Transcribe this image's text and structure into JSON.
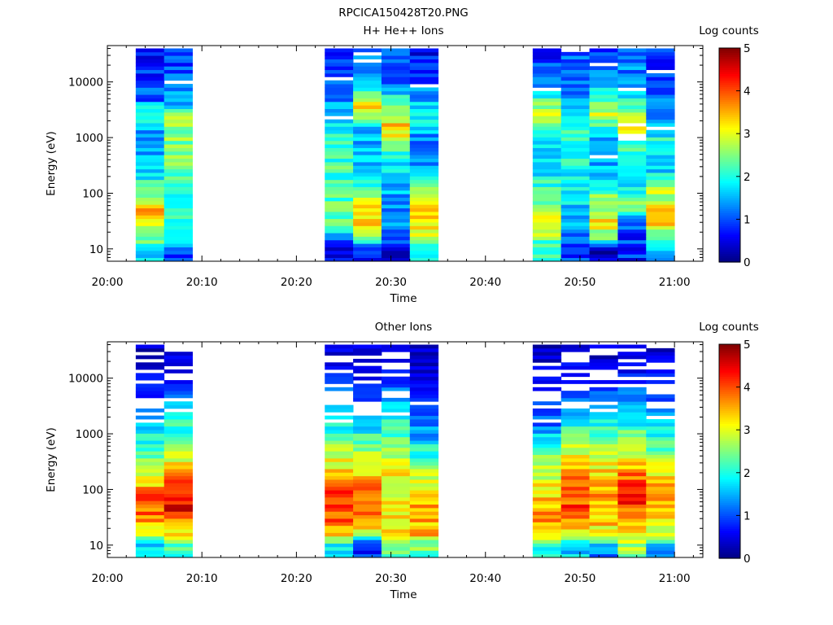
{
  "page": {
    "file_title": "RPCICA150428T20.PNG"
  },
  "chart_data": [
    {
      "type": "heatmap",
      "title": "H+ He++ Ions",
      "xlabel": "Time",
      "ylabel": "Energy (eV)",
      "yscale": "log",
      "ylim": [
        6,
        45000
      ],
      "xlim": [
        "20:00",
        "21:03"
      ],
      "x_tick_labels": [
        "20:00",
        "20:10",
        "20:20",
        "20:30",
        "20:40",
        "20:50",
        "21:00"
      ],
      "y_tick_labels": [
        "10",
        "100",
        "1000",
        "10000"
      ],
      "colorbar": {
        "label": "Log counts",
        "range": [
          0,
          5
        ],
        "tick_labels": [
          "0",
          "1",
          "2",
          "3",
          "4",
          "5"
        ]
      },
      "time_columns": [
        {
          "start": "20:03",
          "end": "20:06",
          "profile": [
            [
              10,
              1.6
            ],
            [
              15,
              2.4
            ],
            [
              30,
              3.2
            ],
            [
              50,
              3.8
            ],
            [
              100,
              2.4
            ],
            [
              300,
              1.6
            ],
            [
              1000,
              1.2
            ],
            [
              2500,
              2.4
            ],
            [
              5000,
              1.0
            ],
            [
              30000,
              0.7
            ]
          ]
        },
        {
          "start": "20:06",
          "end": "20:09",
          "profile": [
            [
              10,
              0.9
            ],
            [
              15,
              1.9
            ],
            [
              50,
              1.9
            ],
            [
              200,
              2.3
            ],
            [
              1000,
              2.5
            ],
            [
              2500,
              2.7
            ],
            [
              4000,
              1.5
            ],
            [
              10000,
              1.0
            ],
            [
              30000,
              0.9
            ]
          ]
        },
        {
          "start": "20:23",
          "end": "20:26",
          "profile": [
            [
              10,
              0.4
            ],
            [
              30,
              2.3
            ],
            [
              100,
              2.3
            ],
            [
              800,
              2.0
            ],
            [
              3000,
              1.4
            ],
            [
              30000,
              0.9
            ]
          ]
        },
        {
          "start": "20:26",
          "end": "20:29",
          "profile": [
            [
              10,
              0.7
            ],
            [
              15,
              2.2
            ],
            [
              30,
              3.3
            ],
            [
              60,
              3.0
            ],
            [
              150,
              1.9
            ],
            [
              500,
              1.5
            ],
            [
              1500,
              1.4
            ],
            [
              3500,
              3.3
            ],
            [
              10000,
              1.4
            ],
            [
              30000,
              1.1
            ]
          ]
        },
        {
          "start": "20:29",
          "end": "20:32",
          "profile": [
            [
              10,
              0.6
            ],
            [
              30,
              1.3
            ],
            [
              100,
              1.5
            ],
            [
              400,
              1.8
            ],
            [
              800,
              2.7
            ],
            [
              1500,
              3.4
            ],
            [
              3000,
              2.5
            ],
            [
              10000,
              1.2
            ],
            [
              30000,
              1.0
            ]
          ]
        },
        {
          "start": "20:32",
          "end": "20:35",
          "profile": [
            [
              10,
              2.1
            ],
            [
              30,
              3.4
            ],
            [
              100,
              2.8
            ],
            [
              300,
              1.3
            ],
            [
              1000,
              1.2
            ],
            [
              2500,
              2.0
            ],
            [
              10000,
              0.9
            ],
            [
              30000,
              0.6
            ]
          ]
        },
        {
          "start": "20:45",
          "end": "20:48",
          "profile": [
            [
              10,
              2.0
            ],
            [
              30,
              3.3
            ],
            [
              100,
              2.3
            ],
            [
              300,
              1.5
            ],
            [
              1000,
              1.8
            ],
            [
              3000,
              2.9
            ],
            [
              10000,
              1.2
            ],
            [
              30000,
              0.8
            ]
          ]
        },
        {
          "start": "20:48",
          "end": "20:51",
          "profile": [
            [
              10,
              0.9
            ],
            [
              30,
              1.6
            ],
            [
              100,
              1.8
            ],
            [
              1000,
              2.1
            ],
            [
              3000,
              1.4
            ],
            [
              10000,
              1.2
            ],
            [
              30000,
              1.1
            ]
          ]
        },
        {
          "start": "20:51",
          "end": "20:54",
          "profile": [
            [
              10,
              0.4
            ],
            [
              15,
              2.2
            ],
            [
              30,
              3.2
            ],
            [
              100,
              2.3
            ],
            [
              300,
              1.5
            ],
            [
              1000,
              1.6
            ],
            [
              3000,
              2.9
            ],
            [
              10000,
              1.3
            ],
            [
              30000,
              1.0
            ]
          ]
        },
        {
          "start": "20:54",
          "end": "20:57",
          "profile": [
            [
              10,
              0.8
            ],
            [
              30,
              1.1
            ],
            [
              60,
              2.9
            ],
            [
              150,
              1.6
            ],
            [
              600,
              2.0
            ],
            [
              2000,
              3.2
            ],
            [
              4000,
              2.1
            ],
            [
              10000,
              1.4
            ],
            [
              30000,
              1.1
            ]
          ]
        },
        {
          "start": "20:57",
          "end": "21:00",
          "profile": [
            [
              10,
              1.6
            ],
            [
              30,
              3.3
            ],
            [
              100,
              2.8
            ],
            [
              300,
              1.5
            ],
            [
              1000,
              1.9
            ],
            [
              3000,
              1.2
            ],
            [
              10000,
              0.9
            ],
            [
              30000,
              0.8
            ]
          ]
        }
      ]
    },
    {
      "type": "heatmap",
      "title": "Other Ions",
      "xlabel": "Time",
      "ylabel": "Energy (eV)",
      "yscale": "log",
      "ylim": [
        6,
        45000
      ],
      "xlim": [
        "20:00",
        "21:03"
      ],
      "x_tick_labels": [
        "20:00",
        "20:10",
        "20:20",
        "20:30",
        "20:40",
        "20:50",
        "21:00"
      ],
      "y_tick_labels": [
        "10",
        "100",
        "1000",
        "10000"
      ],
      "colorbar": {
        "label": "Log counts",
        "range": [
          0,
          5
        ],
        "tick_labels": [
          "0",
          "1",
          "2",
          "3",
          "4",
          "5"
        ]
      },
      "time_columns": [
        {
          "start": "20:03",
          "end": "20:06",
          "profile": [
            [
              10,
              1.8
            ],
            [
              15,
              3.0
            ],
            [
              30,
              3.7
            ],
            [
              60,
              4.1
            ],
            [
              150,
              3.2
            ],
            [
              400,
              2.3
            ],
            [
              1000,
              1.9
            ],
            [
              2500,
              1.0
            ],
            [
              10000,
              0.4
            ],
            [
              30000,
              0.2
            ]
          ]
        },
        {
          "start": "20:06",
          "end": "20:09",
          "profile": [
            [
              10,
              2.2
            ],
            [
              15,
              3.2
            ],
            [
              50,
              4.5
            ],
            [
              100,
              4.3
            ],
            [
              300,
              3.2
            ],
            [
              1000,
              2.3
            ],
            [
              3000,
              1.4
            ],
            [
              10000,
              0.6
            ],
            [
              30000,
              0.3
            ]
          ]
        },
        {
          "start": "20:23",
          "end": "20:26",
          "profile": [
            [
              10,
              2.0
            ],
            [
              15,
              3.2
            ],
            [
              30,
              3.9
            ],
            [
              60,
              4.3
            ],
            [
              150,
              3.6
            ],
            [
              500,
              2.6
            ],
            [
              1500,
              1.9
            ],
            [
              5000,
              1.1
            ],
            [
              30000,
              0.3
            ]
          ]
        },
        {
          "start": "20:26",
          "end": "20:29",
          "profile": [
            [
              10,
              0.8
            ],
            [
              15,
              2.7
            ],
            [
              30,
              3.6
            ],
            [
              100,
              3.8
            ],
            [
              300,
              3.0
            ],
            [
              1000,
              2.1
            ],
            [
              3000,
              1.0
            ],
            [
              30000,
              0.2
            ]
          ]
        },
        {
          "start": "20:29",
          "end": "20:32",
          "profile": [
            [
              10,
              2.4
            ],
            [
              15,
              3.1
            ],
            [
              30,
              3.1
            ],
            [
              100,
              3.2
            ],
            [
              300,
              2.9
            ],
            [
              1000,
              2.3
            ],
            [
              3000,
              1.5
            ],
            [
              10000,
              0.7
            ],
            [
              30000,
              0.3
            ]
          ]
        },
        {
          "start": "20:32",
          "end": "20:35",
          "profile": [
            [
              10,
              2.4
            ],
            [
              15,
              3.4
            ],
            [
              50,
              3.6
            ],
            [
              100,
              3.3
            ],
            [
              300,
              2.4
            ],
            [
              1000,
              1.5
            ],
            [
              3000,
              0.6
            ],
            [
              30000,
              0.2
            ]
          ]
        },
        {
          "start": "20:45",
          "end": "20:48",
          "profile": [
            [
              10,
              2.1
            ],
            [
              15,
              3.1
            ],
            [
              30,
              3.6
            ],
            [
              100,
              3.3
            ],
            [
              300,
              2.6
            ],
            [
              1000,
              1.6
            ],
            [
              3000,
              0.7
            ],
            [
              30000,
              0.2
            ]
          ]
        },
        {
          "start": "20:48",
          "end": "20:51",
          "profile": [
            [
              10,
              1.6
            ],
            [
              15,
              2.9
            ],
            [
              50,
              4.0
            ],
            [
              100,
              4.1
            ],
            [
              300,
              3.3
            ],
            [
              1000,
              2.2
            ],
            [
              3000,
              1.2
            ],
            [
              10000,
              0.6
            ],
            [
              30000,
              0.3
            ]
          ]
        },
        {
          "start": "20:51",
          "end": "20:54",
          "profile": [
            [
              10,
              1.3
            ],
            [
              15,
              3.1
            ],
            [
              30,
              3.4
            ],
            [
              100,
              3.6
            ],
            [
              300,
              3.1
            ],
            [
              1000,
              2.4
            ],
            [
              3000,
              1.4
            ],
            [
              10000,
              0.6
            ],
            [
              30000,
              0.2
            ]
          ]
        },
        {
          "start": "20:54",
          "end": "20:57",
          "profile": [
            [
              10,
              2.6
            ],
            [
              15,
              3.2
            ],
            [
              50,
              4.1
            ],
            [
              100,
              4.2
            ],
            [
              300,
              3.4
            ],
            [
              1000,
              2.3
            ],
            [
              3000,
              1.3
            ],
            [
              10000,
              0.6
            ],
            [
              30000,
              0.3
            ]
          ]
        },
        {
          "start": "20:57",
          "end": "21:00",
          "profile": [
            [
              10,
              1.6
            ],
            [
              15,
              2.9
            ],
            [
              30,
              3.4
            ],
            [
              100,
              3.6
            ],
            [
              300,
              2.9
            ],
            [
              1000,
              2.0
            ],
            [
              3000,
              1.1
            ],
            [
              10000,
              0.5
            ],
            [
              30000,
              0.3
            ]
          ]
        }
      ]
    }
  ]
}
